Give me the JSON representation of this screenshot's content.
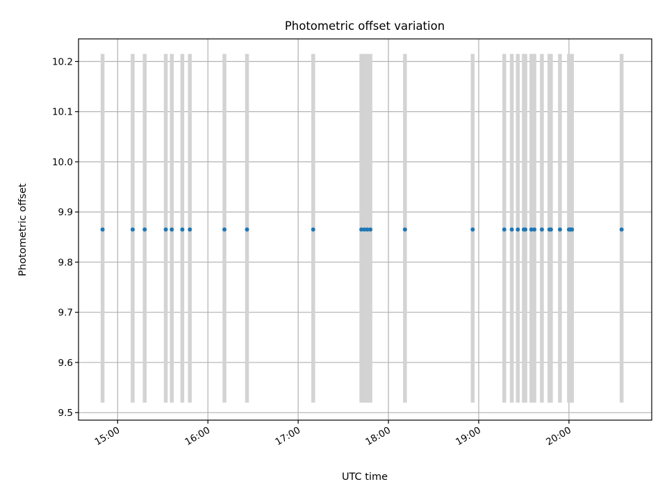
{
  "chart_data": {
    "type": "scatter",
    "title": "Photometric offset variation",
    "xlabel": "UTC time",
    "ylabel": "Photometric offset",
    "x_kind": "time of day (UTC)",
    "xlim": [
      "14:34",
      "20:55"
    ],
    "ylim": [
      9.485,
      10.245
    ],
    "x_ticks": [
      "15:00",
      "16:00",
      "17:00",
      "18:00",
      "19:00",
      "20:00"
    ],
    "y_ticks": [
      "9.5",
      "9.6",
      "9.7",
      "9.8",
      "9.9",
      "10.0",
      "10.1",
      "10.2"
    ],
    "grid": true,
    "legend": "none",
    "point_color": "#1f77b4",
    "bar_color": "#d3d3d3",
    "bar_range": [
      9.52,
      10.215
    ],
    "series": [
      {
        "x": [
          "14:50",
          "15:10",
          "15:18",
          "15:32",
          "15:36",
          "15:43",
          "15:48",
          "16:11",
          "16:26",
          "17:10",
          "17:42",
          "17:44",
          "17:46",
          "17:48",
          "18:11",
          "18:56",
          "19:17",
          "19:22",
          "19:26",
          "19:30",
          "19:31",
          "19:35",
          "19:37",
          "19:42",
          "19:47",
          "19:48",
          "19:54",
          "20:00",
          "20:01",
          "20:02",
          "20:35"
        ],
        "y": [
          9.865,
          9.865,
          9.865,
          9.865,
          9.865,
          9.865,
          9.865,
          9.865,
          9.865,
          9.865,
          9.865,
          9.865,
          9.865,
          9.865,
          9.865,
          9.865,
          9.865,
          9.865,
          9.865,
          9.865,
          9.865,
          9.865,
          9.865,
          9.865,
          9.865,
          9.865,
          9.865,
          9.865,
          9.865,
          9.865,
          9.865
        ]
      }
    ]
  }
}
